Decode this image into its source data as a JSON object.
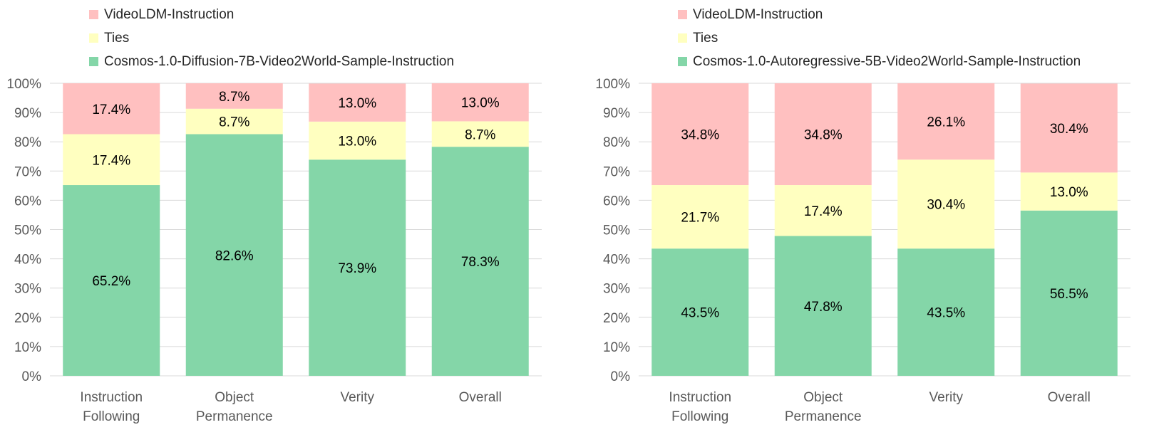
{
  "colors": {
    "first": "#ffc0c0",
    "ties": "#ffffc0",
    "cosmos": "#84d6a8",
    "grid": "#d9d9d9"
  },
  "y_ticks": [
    "0%",
    "10%",
    "20%",
    "30%",
    "40%",
    "50%",
    "60%",
    "70%",
    "80%",
    "90%",
    "100%"
  ],
  "chart_data": [
    {
      "type": "bar",
      "stacked": true,
      "categories": [
        [
          "Instruction",
          "Following"
        ],
        [
          "Object",
          "Permanence"
        ],
        [
          "Verity"
        ],
        [
          "Overall"
        ]
      ],
      "ylim": [
        0,
        100
      ],
      "grid": true,
      "legend_position": "top-left",
      "legend": [
        "VideoLDM-Instruction",
        "Ties",
        "Cosmos-1.0-Diffusion-7B-Video2World-Sample-Instruction"
      ],
      "series": [
        {
          "name": "Cosmos-1.0-Diffusion-7B-Video2World-Sample-Instruction",
          "key": "cosmos",
          "values": [
            65.2,
            82.6,
            73.9,
            78.3
          ],
          "labels": [
            "65.2%",
            "82.6%",
            "73.9%",
            "78.3%"
          ]
        },
        {
          "name": "Ties",
          "key": "ties",
          "values": [
            17.4,
            8.7,
            13.0,
            8.7
          ],
          "labels": [
            "17.4%",
            "8.7%",
            "13.0%",
            "8.7%"
          ]
        },
        {
          "name": "VideoLDM-Instruction",
          "key": "first",
          "values": [
            17.4,
            8.7,
            13.0,
            13.0
          ],
          "labels": [
            "17.4%",
            "8.7%",
            "13.0%",
            "13.0%"
          ]
        }
      ]
    },
    {
      "type": "bar",
      "stacked": true,
      "categories": [
        [
          "Instruction",
          "Following"
        ],
        [
          "Object",
          "Permanence"
        ],
        [
          "Verity"
        ],
        [
          "Overall"
        ]
      ],
      "ylim": [
        0,
        100
      ],
      "grid": true,
      "legend_position": "top-left",
      "legend": [
        "VideoLDM-Instruction",
        "Ties",
        "Cosmos-1.0-Autoregressive-5B-Video2World-Sample-Instruction"
      ],
      "series": [
        {
          "name": "Cosmos-1.0-Autoregressive-5B-Video2World-Sample-Instruction",
          "key": "cosmos",
          "values": [
            43.5,
            47.8,
            43.5,
            56.5
          ],
          "labels": [
            "43.5%",
            "47.8%",
            "43.5%",
            "56.5%"
          ]
        },
        {
          "name": "Ties",
          "key": "ties",
          "values": [
            21.7,
            17.4,
            30.4,
            13.0
          ],
          "labels": [
            "21.7%",
            "17.4%",
            "30.4%",
            "13.0%"
          ]
        },
        {
          "name": "VideoLDM-Instruction",
          "key": "first",
          "values": [
            34.8,
            34.8,
            26.1,
            30.4
          ],
          "labels": [
            "34.8%",
            "34.8%",
            "26.1%",
            "30.4%"
          ]
        }
      ]
    }
  ]
}
